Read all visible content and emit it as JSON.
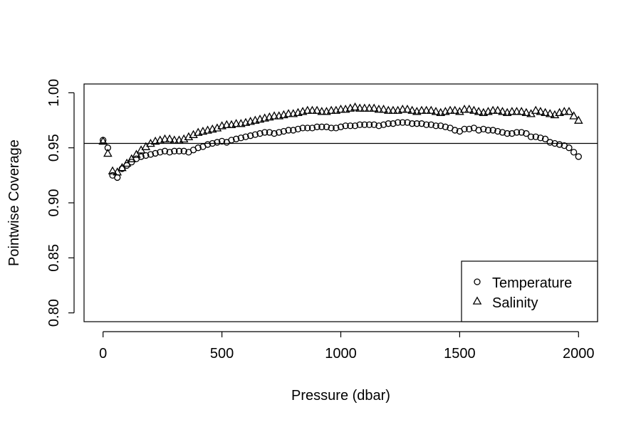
{
  "chart_data": {
    "type": "scatter",
    "title": "",
    "xlabel": "Pressure (dbar)",
    "ylabel": "Pointwise Coverage",
    "xlim": [
      -80,
      2080
    ],
    "ylim": [
      0.792,
      1.008
    ],
    "xticks": [
      0,
      500,
      1000,
      1500,
      2000
    ],
    "yticks": [
      0.8,
      0.85,
      0.9,
      0.95,
      1.0
    ],
    "xtick_labels": [
      "0",
      "500",
      "1000",
      "1500",
      "2000"
    ],
    "ytick_labels": [
      "0.80",
      "0.85",
      "0.90",
      "0.95",
      "1.00"
    ],
    "reference_line": {
      "orientation": "horizontal",
      "y": 0.954
    },
    "grid": false,
    "legend": {
      "position": "bottom-right",
      "entries": [
        "Temperature",
        "Salinity"
      ]
    },
    "series": [
      {
        "name": "Temperature",
        "marker": "circle",
        "x": [
          0,
          20,
          40,
          60,
          80,
          100,
          120,
          140,
          160,
          180,
          200,
          220,
          240,
          260,
          280,
          300,
          320,
          340,
          360,
          380,
          400,
          420,
          440,
          460,
          480,
          500,
          520,
          540,
          560,
          580,
          600,
          620,
          640,
          660,
          680,
          700,
          720,
          740,
          760,
          780,
          800,
          820,
          840,
          860,
          880,
          900,
          920,
          940,
          960,
          980,
          1000,
          1020,
          1040,
          1060,
          1080,
          1100,
          1120,
          1140,
          1160,
          1180,
          1200,
          1220,
          1240,
          1260,
          1280,
          1300,
          1320,
          1340,
          1360,
          1380,
          1400,
          1420,
          1440,
          1460,
          1480,
          1500,
          1520,
          1540,
          1560,
          1580,
          1600,
          1620,
          1640,
          1660,
          1680,
          1700,
          1720,
          1740,
          1760,
          1780,
          1800,
          1820,
          1840,
          1860,
          1880,
          1900,
          1920,
          1940,
          1960,
          1980,
          2000
        ],
        "y": [
          0.957,
          0.95,
          0.925,
          0.923,
          0.931,
          0.934,
          0.937,
          0.94,
          0.942,
          0.943,
          0.944,
          0.945,
          0.946,
          0.947,
          0.946,
          0.947,
          0.947,
          0.947,
          0.946,
          0.948,
          0.95,
          0.951,
          0.953,
          0.954,
          0.955,
          0.956,
          0.955,
          0.957,
          0.958,
          0.959,
          0.96,
          0.961,
          0.962,
          0.963,
          0.964,
          0.964,
          0.963,
          0.964,
          0.965,
          0.966,
          0.966,
          0.967,
          0.968,
          0.968,
          0.968,
          0.969,
          0.969,
          0.969,
          0.968,
          0.968,
          0.969,
          0.97,
          0.97,
          0.97,
          0.971,
          0.971,
          0.971,
          0.971,
          0.97,
          0.971,
          0.972,
          0.972,
          0.973,
          0.973,
          0.973,
          0.972,
          0.972,
          0.972,
          0.971,
          0.971,
          0.97,
          0.97,
          0.969,
          0.968,
          0.966,
          0.965,
          0.967,
          0.967,
          0.968,
          0.966,
          0.967,
          0.966,
          0.966,
          0.965,
          0.964,
          0.963,
          0.963,
          0.964,
          0.964,
          0.963,
          0.96,
          0.96,
          0.959,
          0.958,
          0.955,
          0.954,
          0.953,
          0.952,
          0.95,
          0.946,
          0.942
        ]
      },
      {
        "name": "Salinity",
        "marker": "triangle",
        "x": [
          0,
          20,
          40,
          60,
          80,
          100,
          120,
          140,
          160,
          180,
          200,
          220,
          240,
          260,
          280,
          300,
          320,
          340,
          360,
          380,
          400,
          420,
          440,
          460,
          480,
          500,
          520,
          540,
          560,
          580,
          600,
          620,
          640,
          660,
          680,
          700,
          720,
          740,
          760,
          780,
          800,
          820,
          840,
          860,
          880,
          900,
          920,
          940,
          960,
          980,
          1000,
          1020,
          1040,
          1060,
          1080,
          1100,
          1120,
          1140,
          1160,
          1180,
          1200,
          1220,
          1240,
          1260,
          1280,
          1300,
          1320,
          1340,
          1360,
          1380,
          1400,
          1420,
          1440,
          1460,
          1480,
          1500,
          1520,
          1540,
          1560,
          1580,
          1600,
          1620,
          1640,
          1660,
          1680,
          1700,
          1720,
          1740,
          1760,
          1780,
          1800,
          1820,
          1840,
          1860,
          1880,
          1900,
          1920,
          1940,
          1960,
          1980,
          2000
        ],
        "y": [
          0.956,
          0.945,
          0.929,
          0.928,
          0.932,
          0.936,
          0.94,
          0.944,
          0.948,
          0.951,
          0.954,
          0.956,
          0.957,
          0.958,
          0.958,
          0.957,
          0.957,
          0.958,
          0.96,
          0.962,
          0.964,
          0.965,
          0.966,
          0.967,
          0.968,
          0.97,
          0.971,
          0.971,
          0.972,
          0.972,
          0.973,
          0.974,
          0.975,
          0.976,
          0.977,
          0.978,
          0.979,
          0.979,
          0.98,
          0.981,
          0.981,
          0.982,
          0.983,
          0.984,
          0.984,
          0.984,
          0.983,
          0.983,
          0.984,
          0.984,
          0.985,
          0.985,
          0.986,
          0.987,
          0.986,
          0.986,
          0.986,
          0.986,
          0.985,
          0.985,
          0.984,
          0.984,
          0.984,
          0.985,
          0.985,
          0.984,
          0.983,
          0.984,
          0.984,
          0.984,
          0.983,
          0.982,
          0.983,
          0.984,
          0.984,
          0.983,
          0.985,
          0.985,
          0.984,
          0.983,
          0.982,
          0.983,
          0.984,
          0.984,
          0.983,
          0.982,
          0.983,
          0.983,
          0.983,
          0.982,
          0.981,
          0.984,
          0.983,
          0.982,
          0.981,
          0.98,
          0.982,
          0.983,
          0.983,
          0.979,
          0.975
        ]
      }
    ]
  }
}
